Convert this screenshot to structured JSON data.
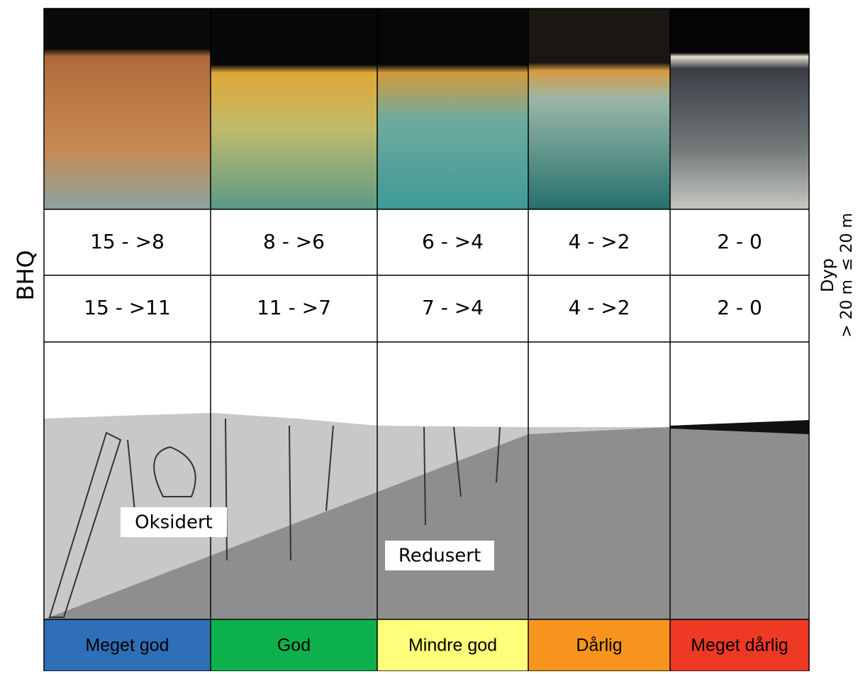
{
  "left_label": "BHQ",
  "right_label": {
    "title": "Dyp",
    "rows": [
      "≤ 20 m",
      "> 20 m"
    ]
  },
  "columns": [
    {
      "shallow": "15 - >8",
      "deep": "15 - >11",
      "status": "Meget god",
      "color": "#2e6fb7"
    },
    {
      "shallow": "8 - >6",
      "deep": "11 - >7",
      "status": "God",
      "color": "#0db14b"
    },
    {
      "shallow": "6 - >4",
      "deep": "7 - >4",
      "status": "Mindre god",
      "color": "#fefe7a"
    },
    {
      "shallow": "4 - >2",
      "deep": "4 - >2",
      "status": "Dårlig",
      "color": "#f7941d"
    },
    {
      "shallow": "2 - 0",
      "deep": "2 - 0",
      "status": "Meget dårlig",
      "color": "#ee3a24"
    }
  ],
  "illustration_labels": [
    "Oksidert",
    "Redusert"
  ]
}
